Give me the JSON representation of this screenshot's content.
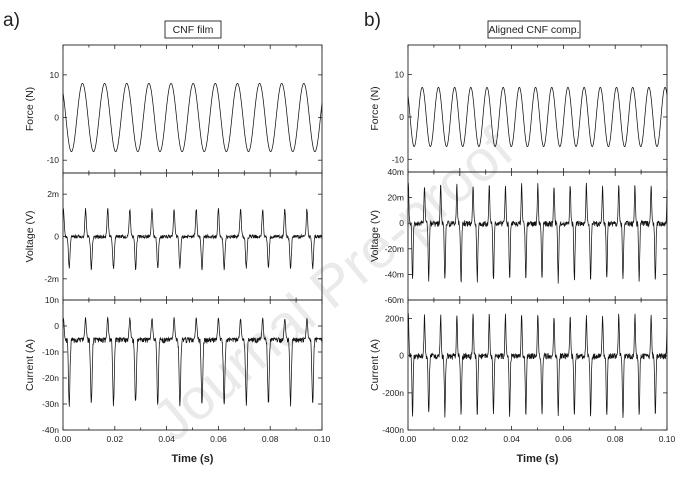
{
  "watermark": "Journal Pre-proof",
  "colors": {
    "trace": "#111111",
    "axis": "#222222",
    "background": "#ffffff"
  },
  "chart_data": [
    {
      "type": "line",
      "panel": "a)",
      "label": "CNF film",
      "xlabel": "Time (s)",
      "xlim": [
        0,
        0.1
      ],
      "x_ticks": [
        "0.00",
        "0.02",
        "0.04",
        "0.06",
        "0.08",
        "0.10"
      ],
      "subplots": [
        {
          "ylabel": "Force (N)",
          "ylim": [
            -13,
            17
          ],
          "y_ticks": [
            {
              "v": 10,
              "t": "10"
            },
            {
              "v": 0,
              "t": "0"
            },
            {
              "v": -10,
              "t": "-10"
            }
          ],
          "series": [
            {
              "waveform": "sine",
              "frequency_hz": 117,
              "peak": 8,
              "trough": -8,
              "offset": 0
            }
          ]
        },
        {
          "ylabel": "Voltage (V)",
          "ylim": [
            -0.003,
            0.003
          ],
          "y_ticks": [
            {
              "v": 0.002,
              "t": "2m"
            },
            {
              "v": 0,
              "t": "0"
            },
            {
              "v": -0.002,
              "t": "-2m"
            }
          ],
          "series": [
            {
              "waveform": "pulse",
              "frequency_hz": 117,
              "peak": 0.0013,
              "trough": -0.0015,
              "offset": 0
            }
          ]
        },
        {
          "ylabel": "Current (A)",
          "ylim": [
            -4e-08,
            1e-08
          ],
          "y_ticks": [
            {
              "v": 1e-08,
              "t": "10n"
            },
            {
              "v": 0,
              "t": "0"
            },
            {
              "v": -1e-08,
              "t": "-10n"
            },
            {
              "v": -2e-08,
              "t": "-20n"
            },
            {
              "v": -3e-08,
              "t": "-30n"
            },
            {
              "v": -4e-08,
              "t": "-40n"
            }
          ],
          "series": [
            {
              "waveform": "pulse",
              "frequency_hz": 117,
              "peak": 3e-09,
              "trough": -3e-08,
              "offset": -5e-09
            }
          ]
        }
      ]
    },
    {
      "type": "line",
      "panel": "b)",
      "label": "Aligned CNF comp.",
      "xlabel": "Time (s)",
      "xlim": [
        0,
        0.1
      ],
      "x_ticks": [
        "0.00",
        "0.02",
        "0.04",
        "0.06",
        "0.08",
        "0.10"
      ],
      "subplots": [
        {
          "ylabel": "Force (N)",
          "ylim": [
            -13,
            17
          ],
          "y_ticks": [
            {
              "v": 10,
              "t": "10"
            },
            {
              "v": 0,
              "t": "0"
            },
            {
              "v": -10,
              "t": "-10"
            }
          ],
          "series": [
            {
              "waveform": "sine",
              "frequency_hz": 160,
              "peak": 7,
              "trough": -7,
              "offset": 0
            }
          ]
        },
        {
          "ylabel": "Voltage (V)",
          "ylim": [
            -0.06,
            0.04
          ],
          "y_ticks": [
            {
              "v": 0.04,
              "t": "40m"
            },
            {
              "v": 0.02,
              "t": "20m"
            },
            {
              "v": 0,
              "t": "0"
            },
            {
              "v": -0.02,
              "t": "-20m"
            },
            {
              "v": -0.04,
              "t": "-40m"
            },
            {
              "v": -0.06,
              "t": "-60m"
            }
          ],
          "series": [
            {
              "waveform": "pulse",
              "frequency_hz": 160,
              "peak": 0.03,
              "trough": -0.045,
              "offset": 0
            }
          ]
        },
        {
          "ylabel": "Current (A)",
          "ylim": [
            -4e-07,
            3e-07
          ],
          "y_ticks": [
            {
              "v": 2e-07,
              "t": "200n"
            },
            {
              "v": 0,
              "t": "0"
            },
            {
              "v": -2e-07,
              "t": "-200n"
            },
            {
              "v": -4e-07,
              "t": "-400n"
            }
          ],
          "series": [
            {
              "waveform": "pulse",
              "frequency_hz": 160,
              "peak": 2.2e-07,
              "trough": -3.2e-07,
              "offset": 0
            }
          ]
        }
      ]
    }
  ]
}
